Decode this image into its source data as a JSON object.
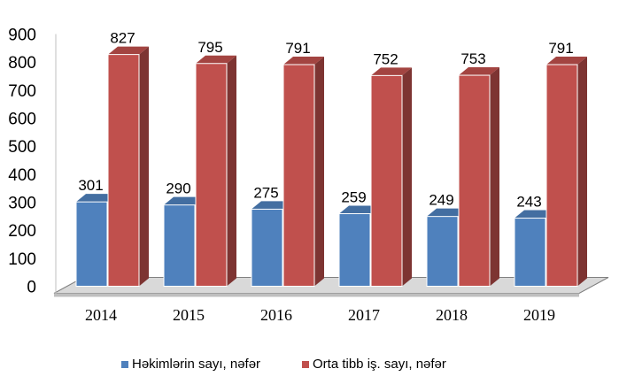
{
  "chart_data": {
    "type": "bar",
    "categories": [
      "2014",
      "2015",
      "2016",
      "2017",
      "2018",
      "2019"
    ],
    "series": [
      {
        "name": "Həkimlərin sayı, nəfər",
        "values": [
          301,
          290,
          275,
          259,
          249,
          243
        ],
        "color": "#4f81bd"
      },
      {
        "name": "Orta tibb iş. sayı, nəfər",
        "values": [
          827,
          795,
          791,
          752,
          753,
          791
        ],
        "color": "#c0504d"
      }
    ],
    "y_ticks": [
      "0",
      "100",
      "200",
      "300",
      "400",
      "500",
      "600",
      "700",
      "800",
      "900"
    ],
    "ylim": [
      0,
      900
    ],
    "grid": false,
    "style": "3d-clustered-column",
    "legend_position": "bottom",
    "data_labels": true
  }
}
